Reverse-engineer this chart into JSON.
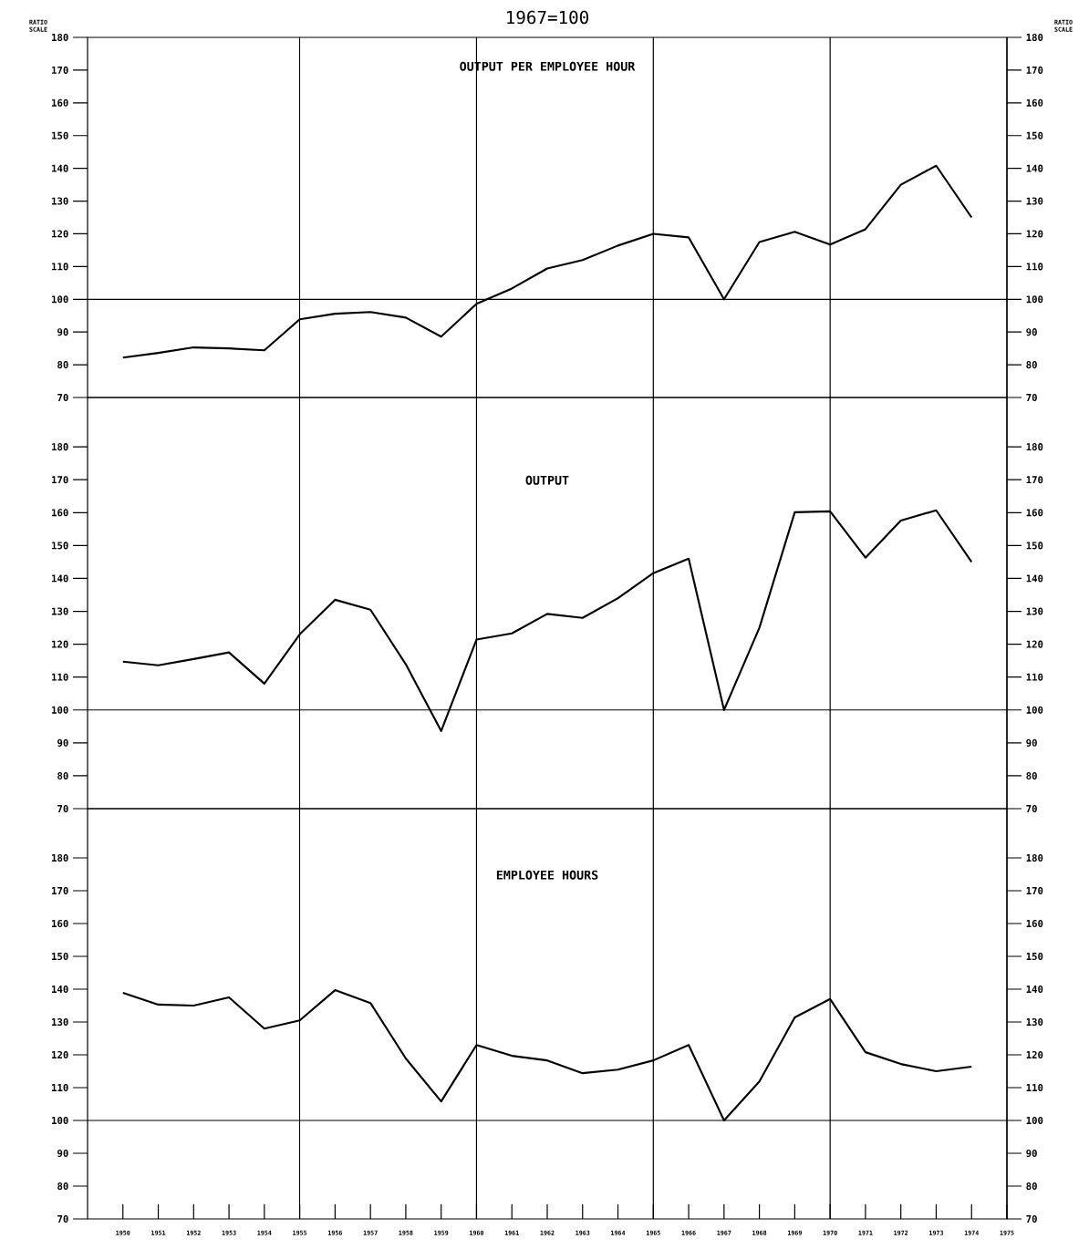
{
  "chart_data": [
    {
      "type": "line",
      "subtitle": "1967=100",
      "title": "OUTPUT PER EMPLOYEE HOUR",
      "ylabel": "RATIO SCALE",
      "y2label": "RATIO SCALE",
      "x": [
        1950,
        1951,
        1952,
        1953,
        1954,
        1955,
        1956,
        1957,
        1958,
        1959,
        1960,
        1961,
        1962,
        1963,
        1964,
        1965,
        1966,
        1967,
        1968,
        1969,
        1970,
        1971,
        1972,
        1973,
        1974
      ],
      "series": [
        {
          "color": "#000000",
          "values": [
            82.2,
            83.6,
            85.3,
            85,
            84.4,
            93.9,
            95.6,
            96.1,
            94.4,
            88.6,
            98.6,
            103.3,
            109.4,
            112,
            116.4,
            120,
            118.9,
            100,
            117.5,
            120.6,
            116.7,
            121.4,
            135,
            140.8,
            125
          ]
        }
      ],
      "xlim": [
        1949,
        1975
      ],
      "ylim": [
        70,
        180
      ],
      "yticks": [
        70,
        80,
        90,
        100,
        110,
        120,
        130,
        140,
        150,
        160,
        170,
        180
      ],
      "y2lim": [
        70,
        180
      ],
      "y2ticks": [
        70,
        80,
        90,
        100,
        110,
        120,
        130,
        140,
        150,
        160,
        170,
        180
      ],
      "tick_labels": "y",
      "line_style": "solid",
      "ref_lines": [
        {
          "axis": "x",
          "value": 1955
        },
        {
          "axis": "x",
          "value": 1960
        },
        {
          "axis": "x",
          "value": 1965
        },
        {
          "axis": "x",
          "value": 1970
        },
        {
          "axis": "y",
          "value": 100
        }
      ]
    },
    {
      "type": "line",
      "title": "OUTPUT",
      "x": [
        1950,
        1951,
        1952,
        1953,
        1954,
        1955,
        1956,
        1957,
        1958,
        1959,
        1960,
        1961,
        1962,
        1963,
        1964,
        1965,
        1966,
        1967,
        1968,
        1969,
        1970,
        1971,
        1972,
        1973,
        1974
      ],
      "series": [
        {
          "color": "#000000",
          "values": [
            114.7,
            113.6,
            115.5,
            117.5,
            108,
            123,
            133.5,
            130.5,
            113.9,
            93.6,
            121.4,
            123.3,
            129.2,
            128,
            134,
            141.6,
            146,
            100,
            125,
            160.1,
            160.4,
            146.3,
            157.6,
            160.7,
            145
          ]
        }
      ],
      "xlim": [
        1949,
        1975
      ],
      "ylim": [
        70,
        195
      ],
      "yticks": [
        70,
        80,
        90,
        100,
        110,
        120,
        130,
        140,
        150,
        160,
        170,
        180
      ],
      "y2lim": [
        70,
        195
      ],
      "y2ticks": [
        70,
        80,
        90,
        100,
        110,
        120,
        130,
        140,
        150,
        160,
        170,
        180
      ],
      "tick_labels": "y",
      "line_style": "solid",
      "ref_lines": [
        {
          "axis": "x",
          "value": 1955
        },
        {
          "axis": "x",
          "value": 1960
        },
        {
          "axis": "x",
          "value": 1965
        },
        {
          "axis": "x",
          "value": 1970
        },
        {
          "axis": "y",
          "value": 100
        }
      ]
    },
    {
      "type": "line",
      "title": "EMPLOYEE HOURS",
      "x": [
        1950,
        1951,
        1952,
        1953,
        1954,
        1955,
        1956,
        1957,
        1958,
        1959,
        1960,
        1961,
        1962,
        1963,
        1964,
        1965,
        1966,
        1967,
        1968,
        1969,
        1970,
        1971,
        1972,
        1973,
        1974
      ],
      "series": [
        {
          "color": "#000000",
          "values": [
            138.9,
            135.3,
            135,
            137.5,
            128,
            130.5,
            139.7,
            135.8,
            118.9,
            105.8,
            123,
            119.7,
            118.3,
            114.4,
            115.5,
            118.3,
            123,
            100,
            111.9,
            131.4,
            137,
            120.8,
            117.2,
            115,
            116.4
          ]
        }
      ],
      "xlim": [
        1949,
        1975
      ],
      "xticks": [
        1950,
        1951,
        1952,
        1953,
        1954,
        1955,
        1956,
        1957,
        1958,
        1959,
        1960,
        1961,
        1962,
        1963,
        1964,
        1965,
        1966,
        1967,
        1968,
        1969,
        1970,
        1971,
        1972,
        1973,
        1974,
        1975
      ],
      "ylim": [
        70,
        195
      ],
      "yticks": [
        70,
        80,
        90,
        100,
        110,
        120,
        130,
        140,
        150,
        160,
        170,
        180
      ],
      "y2lim": [
        70,
        195
      ],
      "y2ticks": [
        70,
        80,
        90,
        100,
        110,
        120,
        130,
        140,
        150,
        160,
        170,
        180
      ],
      "line_style": "solid",
      "ref_lines": [
        {
          "axis": "x",
          "value": 1955
        },
        {
          "axis": "x",
          "value": 1960
        },
        {
          "axis": "x",
          "value": 1965
        },
        {
          "axis": "x",
          "value": 1970
        },
        {
          "axis": "y",
          "value": 100
        }
      ]
    }
  ]
}
